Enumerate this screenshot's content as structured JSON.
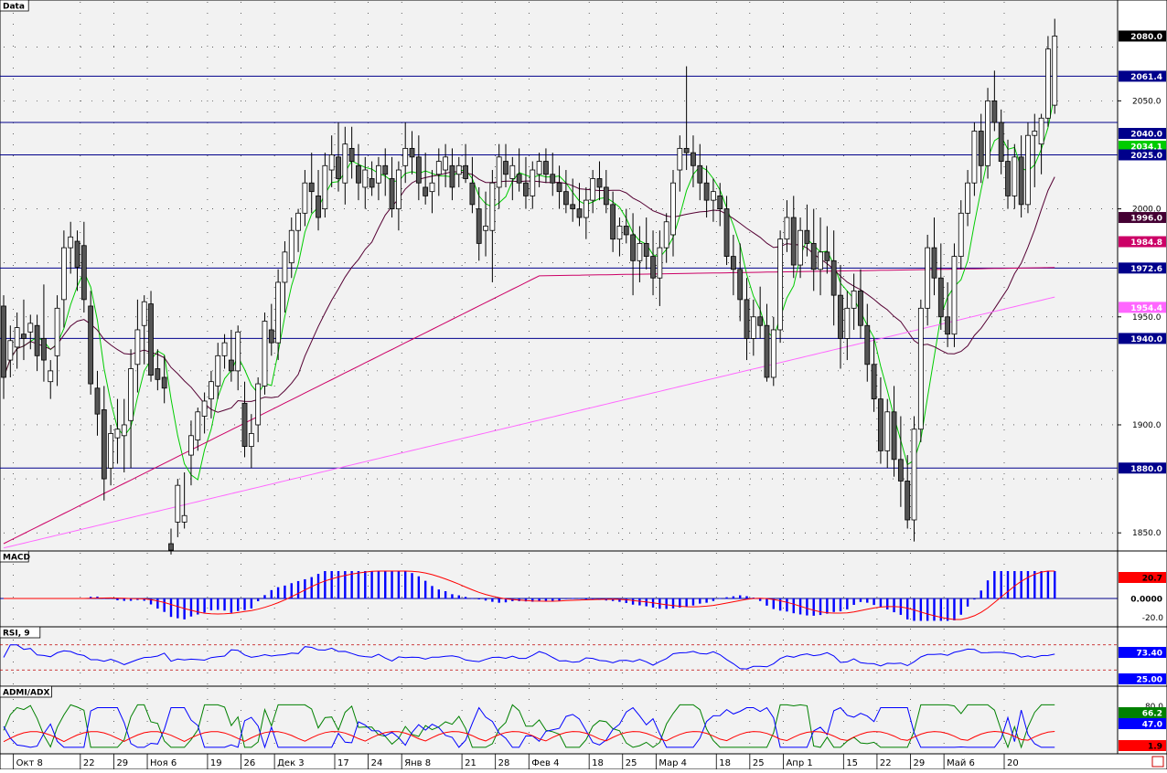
{
  "colors": {
    "panel_bg": "#f2f2f2",
    "border": "#000000",
    "hline": "#00008b",
    "bear": "#555555",
    "bull": "#ffffff",
    "sma_fast": "#00cc00",
    "sma_mid": "#550033",
    "sma_slow": "#cc0066",
    "sma_200": "#ff66ff",
    "macd_hist": "#0000ff",
    "macd_signal": "#ff0000",
    "rsi": "#0000ff",
    "rsi_levels": "#c00000",
    "adx_plus": "#008000",
    "adx_minus": "#0000ff",
    "adx": "#ff0000"
  },
  "panes": {
    "price_title": "Data",
    "macd_title": "MACD",
    "rsi_title": "RSI, 9",
    "adx_title": "ADMI/ADX"
  },
  "chart_data": {
    "type": "candlestick",
    "y_ticks": [
      "1850.0",
      "1900.0",
      "1950.0",
      "2000.0",
      "2050.0"
    ],
    "price_ylim": [
      1845,
      2095
    ],
    "horizontal_levels": [
      2061.4,
      2040.0,
      2025.0,
      1972.6,
      1940.0,
      1880.0
    ],
    "value_tags": [
      {
        "label": "2080.0",
        "value": 2080.0,
        "bg": "#000000",
        "fg": "#ffffff"
      },
      {
        "label": "2061.4",
        "value": 2061.4,
        "bg": "#00008b",
        "fg": "#ffffff"
      },
      {
        "label": "2040.0",
        "value": 2040.0,
        "bg": "#00008b",
        "fg": "#ffffff"
      },
      {
        "label": "2034.1",
        "value": 2034.1,
        "bg": "#00cc00",
        "fg": "#ffffff"
      },
      {
        "label": "2025.0",
        "value": 2025.0,
        "bg": "#00008b",
        "fg": "#ffffff"
      },
      {
        "label": "1996.0",
        "value": 1996.0,
        "bg": "#440033",
        "fg": "#ffffff"
      },
      {
        "label": "1984.8",
        "value": 1984.8,
        "bg": "#cc0066",
        "fg": "#ffffff"
      },
      {
        "label": "1972.6",
        "value": 1972.6,
        "bg": "#00008b",
        "fg": "#ffffff"
      },
      {
        "label": "1954.4",
        "value": 1954.4,
        "bg": "#ff66ff",
        "fg": "#ffffff"
      },
      {
        "label": "1940.0",
        "value": 1940.0,
        "bg": "#00008b",
        "fg": "#ffffff"
      },
      {
        "label": "1880.0",
        "value": 1880.0,
        "bg": "#00008b",
        "fg": "#ffffff"
      }
    ],
    "dates": [
      {
        "label": "Окт 8",
        "index": 2
      },
      {
        "label": "22",
        "index": 12
      },
      {
        "label": "29",
        "index": 17
      },
      {
        "label": "Ноя 6",
        "index": 22
      },
      {
        "label": "19",
        "index": 31
      },
      {
        "label": "26",
        "index": 36
      },
      {
        "label": "Дек 3",
        "index": 41
      },
      {
        "label": "17",
        "index": 50
      },
      {
        "label": "24",
        "index": 55
      },
      {
        "label": "Янв 8",
        "index": 60
      },
      {
        "label": "21",
        "index": 69
      },
      {
        "label": "28",
        "index": 74
      },
      {
        "label": "Фев 4",
        "index": 79
      },
      {
        "label": "18",
        "index": 88
      },
      {
        "label": "25",
        "index": 93
      },
      {
        "label": "Мар 4",
        "index": 98
      },
      {
        "label": "18",
        "index": 107
      },
      {
        "label": "25",
        "index": 112
      },
      {
        "label": "Апр 1",
        "index": 117
      },
      {
        "label": "15",
        "index": 126
      },
      {
        "label": "22",
        "index": 131
      },
      {
        "label": "29",
        "index": 136
      },
      {
        "label": "Май 6",
        "index": 141
      },
      {
        "label": "20",
        "index": 150
      }
    ],
    "candles": [
      [
        1955,
        1960,
        1912,
        1922
      ],
      [
        1930,
        1946,
        1922,
        1939
      ],
      [
        1936,
        1952,
        1926,
        1945
      ],
      [
        1942,
        1958,
        1930,
        1940
      ],
      [
        1943,
        1951,
        1935,
        1947
      ],
      [
        1946,
        1951,
        1925,
        1932
      ],
      [
        1940,
        1965,
        1920,
        1930
      ],
      [
        1920,
        1930,
        1912,
        1925
      ],
      [
        1932,
        1960,
        1918,
        1954
      ],
      [
        1958,
        1990,
        1945,
        1982
      ],
      [
        1982,
        1994,
        1970,
        1987
      ],
      [
        1985,
        1990,
        1962,
        1973
      ],
      [
        1983,
        1994,
        1952,
        1958
      ],
      [
        1955,
        1962,
        1914,
        1919
      ],
      [
        1917,
        1925,
        1895,
        1905
      ],
      [
        1907,
        1918,
        1865,
        1875
      ],
      [
        1880,
        1900,
        1872,
        1896
      ],
      [
        1894,
        1912,
        1882,
        1898
      ],
      [
        1895,
        1912,
        1878,
        1900
      ],
      [
        1902,
        1935,
        1880,
        1926
      ],
      [
        1928,
        1958,
        1915,
        1944
      ],
      [
        1946,
        1960,
        1928,
        1957
      ],
      [
        1956,
        1962,
        1920,
        1923
      ],
      [
        1926,
        1935,
        1916,
        1921
      ],
      [
        1922,
        1932,
        1910,
        1917
      ],
      [
        1845,
        1852,
        1840,
        1842
      ],
      [
        1855,
        1875,
        1848,
        1872
      ],
      [
        1855,
        1878,
        1852,
        1858
      ],
      [
        1886,
        1902,
        1872,
        1895
      ],
      [
        1893,
        1908,
        1888,
        1906
      ],
      [
        1904,
        1915,
        1896,
        1911
      ],
      [
        1912,
        1925,
        1903,
        1920
      ],
      [
        1918,
        1938,
        1912,
        1932
      ],
      [
        1932,
        1942,
        1926,
        1938
      ],
      [
        1930,
        1944,
        1920,
        1925
      ],
      [
        1925,
        1946,
        1916,
        1943
      ],
      [
        1910,
        1920,
        1885,
        1890
      ],
      [
        1890,
        1905,
        1880,
        1896
      ],
      [
        1900,
        1922,
        1892,
        1919
      ],
      [
        1918,
        1952,
        1914,
        1948
      ],
      [
        1944,
        1956,
        1932,
        1938
      ],
      [
        1938,
        1972,
        1930,
        1966
      ],
      [
        1966,
        1985,
        1952,
        1980
      ],
      [
        1975,
        1996,
        1968,
        1990
      ],
      [
        1990,
        2000,
        1980,
        1998
      ],
      [
        1998,
        2018,
        1992,
        2012
      ],
      [
        2012,
        2026,
        1998,
        2008
      ],
      [
        2006,
        2018,
        1990,
        1996
      ],
      [
        2000,
        2026,
        1996,
        2020
      ],
      [
        2018,
        2034,
        2010,
        2025
      ],
      [
        2024,
        2040,
        2008,
        2014
      ],
      [
        2012,
        2038,
        2002,
        2030
      ],
      [
        2028,
        2038,
        2014,
        2022
      ],
      [
        2020,
        2030,
        2004,
        2012
      ],
      [
        2010,
        2024,
        2000,
        2018
      ],
      [
        2014,
        2022,
        2006,
        2010
      ],
      [
        2012,
        2024,
        2004,
        2020
      ],
      [
        2020,
        2028,
        2006,
        2016
      ],
      [
        2014,
        2024,
        1996,
        2000
      ],
      [
        2000,
        2022,
        1990,
        2018
      ],
      [
        2020,
        2040,
        2012,
        2028
      ],
      [
        2028,
        2036,
        2016,
        2024
      ],
      [
        2024,
        2034,
        2004,
        2012
      ],
      [
        2010,
        2026,
        2002,
        2006
      ],
      [
        2008,
        2018,
        1998,
        2012
      ],
      [
        2016,
        2028,
        2006,
        2022
      ],
      [
        2018,
        2030,
        2010,
        2024
      ],
      [
        2020,
        2028,
        2004,
        2010
      ],
      [
        2016,
        2024,
        2010,
        2020
      ],
      [
        2020,
        2030,
        2012,
        2014
      ],
      [
        2012,
        2024,
        1998,
        2002
      ],
      [
        2000,
        2010,
        1976,
        1984
      ],
      [
        1990,
        2008,
        1978,
        1992
      ],
      [
        1990,
        2018,
        1966,
        2012
      ],
      [
        2010,
        2030,
        2000,
        2024
      ],
      [
        2022,
        2030,
        2010,
        2016
      ],
      [
        2014,
        2024,
        2004,
        2020
      ],
      [
        2016,
        2028,
        2008,
        2012
      ],
      [
        2012,
        2024,
        2000,
        2006
      ],
      [
        2006,
        2022,
        2000,
        2018
      ],
      [
        2016,
        2026,
        2010,
        2022
      ],
      [
        2022,
        2028,
        2012,
        2016
      ],
      [
        2016,
        2026,
        2006,
        2012
      ],
      [
        2012,
        2020,
        2000,
        2008
      ],
      [
        2008,
        2018,
        1998,
        2002
      ],
      [
        2002,
        2014,
        1994,
        2000
      ],
      [
        2000,
        2012,
        1992,
        1996
      ],
      [
        1996,
        2010,
        1986,
        2004
      ],
      [
        2004,
        2018,
        1998,
        2014
      ],
      [
        2014,
        2022,
        2004,
        2010
      ],
      [
        2010,
        2018,
        1998,
        2002
      ],
      [
        2002,
        2008,
        1980,
        1986
      ],
      [
        1986,
        1996,
        1978,
        1992
      ],
      [
        1992,
        2000,
        1984,
        1988
      ],
      [
        1988,
        1998,
        1960,
        1976
      ],
      [
        1976,
        1992,
        1966,
        1984
      ],
      [
        1984,
        1996,
        1972,
        1978
      ],
      [
        1978,
        1990,
        1960,
        1968
      ],
      [
        1968,
        1990,
        1955,
        1982
      ],
      [
        1982,
        1998,
        1975,
        1994
      ],
      [
        1988,
        2018,
        1978,
        2012
      ],
      [
        2018,
        2034,
        2008,
        2028
      ],
      [
        2028,
        2066,
        2018,
        2026
      ],
      [
        2026,
        2034,
        2010,
        2020
      ],
      [
        2020,
        2030,
        2004,
        2012
      ],
      [
        2012,
        2020,
        1996,
        2004
      ],
      [
        2004,
        2014,
        1994,
        2008
      ],
      [
        2006,
        2012,
        1992,
        2000
      ],
      [
        2000,
        2006,
        1974,
        1978
      ],
      [
        1978,
        1988,
        1960,
        1972
      ],
      [
        1972,
        1984,
        1948,
        1958
      ],
      [
        1958,
        1968,
        1930,
        1940
      ],
      [
        1940,
        1958,
        1932,
        1950
      ],
      [
        1950,
        1964,
        1940,
        1946
      ],
      [
        1946,
        1956,
        1920,
        1922
      ],
      [
        1922,
        1950,
        1918,
        1944
      ],
      [
        1944,
        1990,
        1938,
        1986
      ],
      [
        1986,
        2004,
        1980,
        1996
      ],
      [
        1996,
        2006,
        1968,
        1974
      ],
      [
        1974,
        1996,
        1968,
        1990
      ],
      [
        1990,
        2002,
        1978,
        1984
      ],
      [
        1984,
        2000,
        1962,
        1972
      ],
      [
        1972,
        1996,
        1960,
        1980
      ],
      [
        1980,
        1992,
        1970,
        1976
      ],
      [
        1976,
        1990,
        1946,
        1960
      ],
      [
        1960,
        1974,
        1926,
        1940
      ],
      [
        1940,
        1962,
        1930,
        1954
      ],
      [
        1954,
        1970,
        1944,
        1962
      ],
      [
        1962,
        1972,
        1940,
        1946
      ],
      [
        1946,
        1956,
        1920,
        1928
      ],
      [
        1928,
        1940,
        1906,
        1912
      ],
      [
        1912,
        1922,
        1882,
        1888
      ],
      [
        1888,
        1912,
        1880,
        1906
      ],
      [
        1906,
        1918,
        1876,
        1884
      ],
      [
        1884,
        1904,
        1862,
        1874
      ],
      [
        1874,
        1886,
        1852,
        1856
      ],
      [
        1856,
        1904,
        1846,
        1898
      ],
      [
        1898,
        1958,
        1892,
        1954
      ],
      [
        1954,
        1988,
        1946,
        1982
      ],
      [
        1982,
        1996,
        1960,
        1968
      ],
      [
        1968,
        1984,
        1944,
        1950
      ],
      [
        1950,
        1966,
        1936,
        1942
      ],
      [
        1942,
        1984,
        1936,
        1978
      ],
      [
        1978,
        2004,
        1972,
        1998
      ],
      [
        1998,
        2018,
        1992,
        2012
      ],
      [
        2012,
        2040,
        2006,
        2036
      ],
      [
        2036,
        2044,
        2012,
        2020
      ],
      [
        2020,
        2056,
        2014,
        2050
      ],
      [
        2050,
        2064,
        2036,
        2040
      ],
      [
        2040,
        2046,
        2016,
        2022
      ],
      [
        2022,
        2032,
        2000,
        2006
      ],
      [
        2006,
        2030,
        2000,
        2024
      ],
      [
        2024,
        2034,
        1996,
        2002
      ],
      [
        2002,
        2040,
        1998,
        2034
      ],
      [
        2034,
        2044,
        2010,
        2036
      ],
      [
        2030,
        2044,
        2016,
        2042
      ],
      [
        2042,
        2080,
        2038,
        2074
      ],
      [
        2048,
        2088,
        2044,
        2080
      ]
    ],
    "series": [
      {
        "name": "",
        "color": "#00cc00",
        "period": 5
      },
      {
        "name": "",
        "color": "#550033",
        "period": 20
      },
      {
        "name": "",
        "color": "#cc0066",
        "period": 50
      },
      {
        "name": "",
        "color": "#ff66ff",
        "period": 120
      }
    ],
    "macd": {
      "ylim": [
        -30,
        30
      ],
      "ticks": [
        "-20.0"
      ],
      "tags": [
        {
          "label": "20.7",
          "value": 20.7,
          "bg": "#ff0000",
          "fg": "#000000"
        },
        {
          "label": "0.0000",
          "value": 0,
          "bg": "#ffffff",
          "fg": "#000000"
        }
      ]
    },
    "rsi": {
      "ylim": [
        0,
        100
      ],
      "levels": [
        75,
        25
      ],
      "tags": [
        {
          "label": "73.40",
          "value": 73.4,
          "bg": "#0000ff",
          "fg": "#ffffff"
        },
        {
          "label": "25.00",
          "value": 25.0,
          "bg": "#0000ff",
          "fg": "#ffffff"
        }
      ]
    },
    "adx": {
      "ylim": [
        0,
        100
      ],
      "ticks": [
        "80.0"
      ],
      "tags": [
        {
          "label": "66.2",
          "value": 66.2,
          "bg": "#008000",
          "fg": "#ffffff"
        },
        {
          "label": "47.0",
          "value": 47.0,
          "bg": "#0000ff",
          "fg": "#ffffff"
        },
        {
          "label": "1.9",
          "value": 1.9,
          "bg": "#ff0000",
          "fg": "#000000"
        }
      ]
    }
  }
}
